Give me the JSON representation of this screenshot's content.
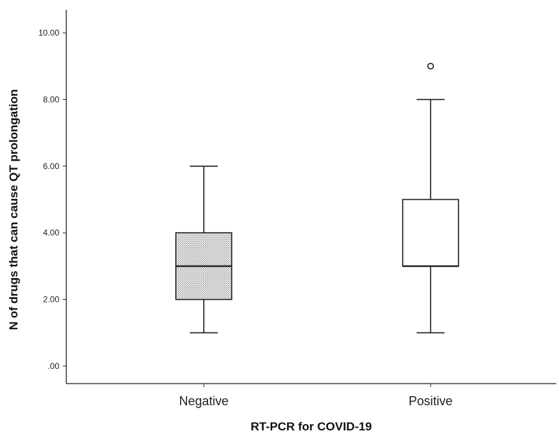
{
  "chart_data": {
    "type": "box",
    "xlabel": "RT-PCR for COVID-19",
    "ylabel": "N of drugs that can cause QT prolongation",
    "ylim": [
      0,
      10.6
    ],
    "y_ticks": [
      0,
      2,
      4,
      6,
      8,
      10
    ],
    "y_tick_labels": [
      ".00",
      "2.00",
      "4.00",
      "6.00",
      "8.00",
      "10.00"
    ],
    "grid": false,
    "legend": "none",
    "categories": [
      "Negative",
      "Positive"
    ],
    "boxes": [
      {
        "category": "Negative",
        "min": 1,
        "q1": 2,
        "median": 3,
        "q3": 4,
        "max": 6,
        "outliers": [],
        "fill": "dotted-gray"
      },
      {
        "category": "Positive",
        "min": 1,
        "q1": 3,
        "median": 3,
        "q3": 5,
        "max": 8,
        "outliers": [
          9
        ],
        "fill": "white"
      }
    ]
  }
}
